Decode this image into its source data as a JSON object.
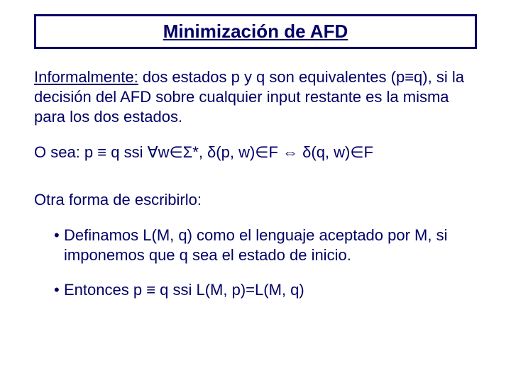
{
  "colors": {
    "text": "#000066",
    "border": "#000066",
    "background": "#ffffff"
  },
  "typography": {
    "title_fontsize": 26,
    "body_fontsize": 22,
    "font_family": "Comic Sans MS"
  },
  "title": "Minimización de AFD",
  "para1_prefix": "Informalmente:",
  "para1_rest": " dos estados p y q son equivalentes (p≡q), si la decisión del AFD sobre cualquier input restante es la misma para los dos estados.",
  "para2": "O sea: p ≡ q  ssi  ∀w∈Σ*,  δ(p, w)∈F ⇔ δ(q, w)∈F",
  "para3": "Otra forma de escribirlo:",
  "bullet1": "Definamos L(M, q) como el lenguaje aceptado por M, si imponemos que q sea el estado de inicio.",
  "bullet2": "Entonces p ≡ q ssi L(M, p)=L(M, q)"
}
